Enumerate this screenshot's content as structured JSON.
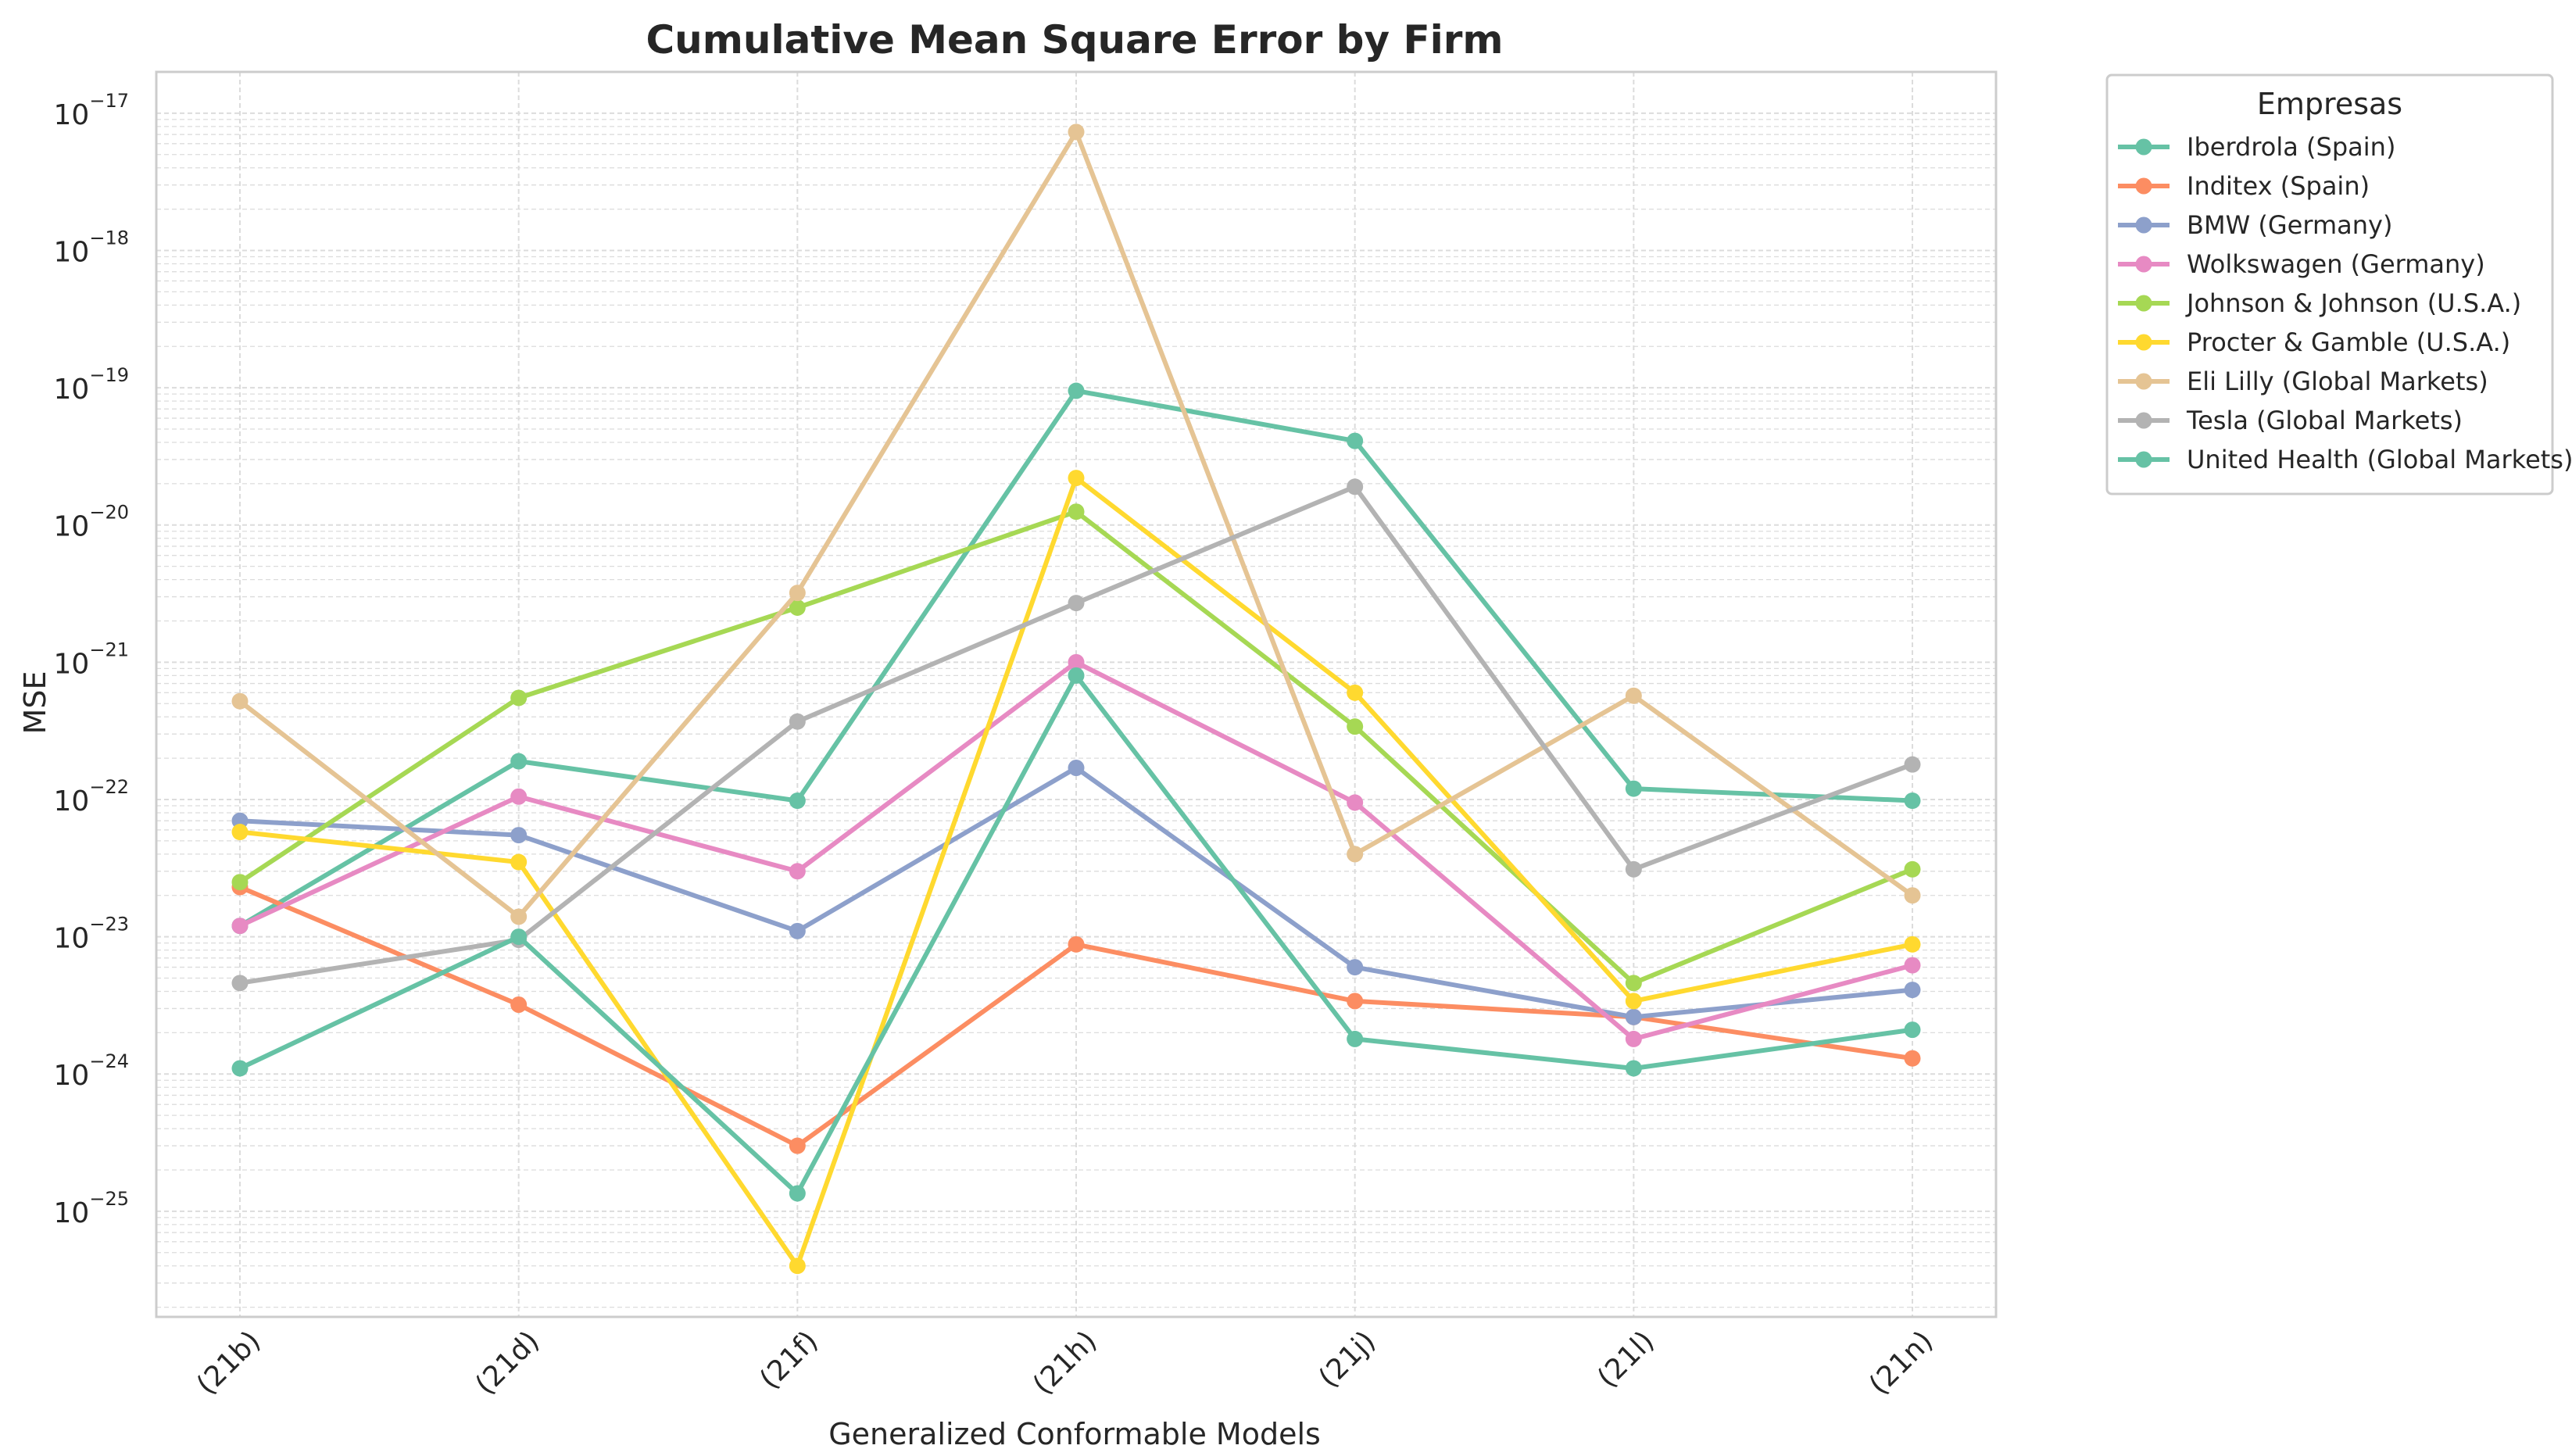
{
  "chart_data": {
    "type": "line",
    "title": "Cumulative Mean Square Error by Firm",
    "xlabel": "Generalized Conformable Models",
    "ylabel": "MSE",
    "yscale": "log",
    "ylim": [
      1.7e-26,
      2e-17
    ],
    "yticks": [
      {
        "value": 1e-17,
        "base": "10",
        "exp": "−17"
      },
      {
        "value": 1e-18,
        "base": "10",
        "exp": "−18"
      },
      {
        "value": 1e-19,
        "base": "10",
        "exp": "−19"
      },
      {
        "value": 1e-20,
        "base": "10",
        "exp": "−20"
      },
      {
        "value": 1e-21,
        "base": "10",
        "exp": "−21"
      },
      {
        "value": 1e-22,
        "base": "10",
        "exp": "−22"
      },
      {
        "value": 1e-23,
        "base": "10",
        "exp": "−23"
      },
      {
        "value": 1e-24,
        "base": "10",
        "exp": "−24"
      },
      {
        "value": 1e-25,
        "base": "10",
        "exp": "−25"
      }
    ],
    "grid": true,
    "legend_title": "Empresas",
    "legend_position": "outside-right",
    "categories": [
      "(21b)",
      "(21d)",
      "(21f)",
      "(21h)",
      "(21j)",
      "(21l)",
      "(21n)"
    ],
    "series": [
      {
        "name": "Iberdrola (Spain)",
        "color": "#66c2a5",
        "values": [
          1.2e-23,
          1.9e-22,
          9.8e-23,
          9.5e-20,
          4.1e-20,
          1.2e-22,
          9.8e-23
        ]
      },
      {
        "name": "Inditex (Spain)",
        "color": "#fc8d62",
        "values": [
          2.3e-23,
          3.2e-24,
          3e-25,
          8.8e-24,
          3.4e-24,
          2.6e-24,
          1.3e-24
        ]
      },
      {
        "name": "BMW (Germany)",
        "color": "#8da0cb",
        "values": [
          7e-23,
          5.5e-23,
          1.1e-23,
          1.7e-22,
          6e-24,
          2.6e-24,
          4.1e-24
        ]
      },
      {
        "name": "Wolkswagen (Germany)",
        "color": "#e78ac3",
        "values": [
          1.2e-23,
          1.05e-22,
          3e-23,
          1e-21,
          9.5e-23,
          1.8e-24,
          6.2e-24
        ]
      },
      {
        "name": "Johnson & Johnson (U.S.A.)",
        "color": "#a6d854",
        "values": [
          2.5e-23,
          5.5e-22,
          2.5e-21,
          1.25e-20,
          3.4e-22,
          4.6e-24,
          3.1e-23
        ]
      },
      {
        "name": "Procter & Gamble (U.S.A.)",
        "color": "#ffd92f",
        "values": [
          5.8e-23,
          3.5e-23,
          4e-26,
          2.2e-20,
          6e-22,
          3.4e-24,
          8.8e-24
        ]
      },
      {
        "name": "Eli Lilly (Global Markets)",
        "color": "#e5c494",
        "values": [
          5.2e-22,
          1.4e-23,
          3.2e-21,
          7.3e-18,
          4e-23,
          5.7e-22,
          2e-23
        ]
      },
      {
        "name": "Tesla (Global Markets)",
        "color": "#b3b3b3",
        "values": [
          4.6e-24,
          9.5e-24,
          3.7e-22,
          2.7e-21,
          1.9e-20,
          3.1e-23,
          1.8e-22
        ]
      },
      {
        "name": "United Health (Global Markets)",
        "color": "#66c2a5",
        "values": [
          1.1e-24,
          1e-23,
          1.35e-25,
          8e-22,
          1.8e-24,
          1.1e-24,
          2.1e-24
        ]
      }
    ]
  }
}
